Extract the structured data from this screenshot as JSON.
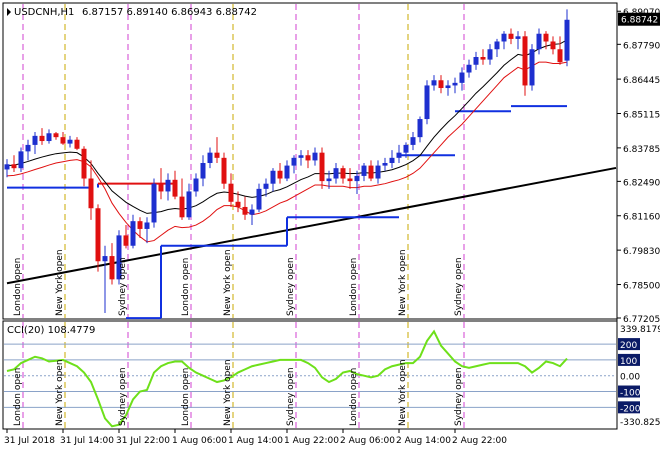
{
  "header": {
    "title": "USDCNH,H1",
    "ohlc": "6.87157 6.89140 6.86943 6.88742"
  },
  "price_axis": {
    "ticks": [
      "6.89070",
      "6.87790",
      "6.86445",
      "6.85115",
      "6.83785",
      "6.82490",
      "6.81160",
      "6.79830",
      "6.78500",
      "6.77205"
    ],
    "current": "6.88742"
  },
  "time_axis": {
    "ticks": [
      "31 Jul 2018",
      "31 Jul 14:00",
      "31 Jul 22:00",
      "1 Aug 06:00",
      "1 Aug 14:00",
      "1 Aug 22:00",
      "2 Aug 06:00",
      "2 Aug 14:00",
      "2 Aug 22:00"
    ]
  },
  "session_labels": [
    "London open",
    "New York open",
    "Sydney open",
    "London open",
    "New York open",
    "Sydney open",
    "London open",
    "New York open",
    "Sydney open"
  ],
  "cci": {
    "title": "CCI(20) 108.4779",
    "axis_top": "339.8179",
    "axis_bottom": "-330.8253",
    "levels": [
      {
        "label": "200",
        "value": 200
      },
      {
        "label": "100",
        "value": 100
      },
      {
        "label": "0.00",
        "value": 0
      },
      {
        "label": "-100",
        "value": -100
      },
      {
        "label": "-200",
        "value": -200
      }
    ]
  },
  "colors": {
    "bull": "#1e2fcf",
    "bear": "#e01010",
    "slow_line": "#000000",
    "fast_line": "#e01010",
    "stop_line": "#1030e0",
    "trendline": "#000000",
    "cci_line": "#6ee01a",
    "level_line": "#8aa2c8",
    "session_london": "#d040d0",
    "session_newyork": "#c8a800",
    "session_sydney": "#d040d0",
    "label_bg": "#0a1a66"
  },
  "chart_data": {
    "type": "candlestick",
    "timeframe": "H1",
    "ylim": [
      6.77205,
      6.8935
    ],
    "cci_ylim": [
      -330.8253,
      339.8179
    ],
    "candles": [
      [
        6.8295,
        6.8335,
        6.8265,
        6.8315
      ],
      [
        6.8315,
        6.835,
        6.8285,
        6.83
      ],
      [
        6.83,
        6.838,
        6.8285,
        6.8365
      ],
      [
        6.8365,
        6.841,
        6.833,
        6.839
      ],
      [
        6.839,
        6.844,
        6.8355,
        6.8425
      ],
      [
        6.8425,
        6.8455,
        6.839,
        6.8405
      ],
      [
        6.8405,
        6.845,
        6.8395,
        6.8435
      ],
      [
        6.8435,
        6.844,
        6.841,
        6.842
      ],
      [
        6.842,
        6.844,
        6.839,
        6.8395
      ],
      [
        6.8395,
        6.8425,
        6.838,
        6.841
      ],
      [
        6.841,
        6.842,
        6.837,
        6.8375
      ],
      [
        6.8375,
        6.8385,
        6.823,
        6.826
      ],
      [
        6.826,
        6.833,
        6.81,
        6.8145
      ],
      [
        6.8145,
        6.816,
        6.79,
        6.794
      ],
      [
        6.794,
        6.8,
        6.774,
        6.796
      ],
      [
        6.796,
        6.801,
        6.785,
        6.787
      ],
      [
        6.787,
        6.806,
        6.785,
        6.804
      ],
      [
        6.804,
        6.808,
        6.799,
        6.8
      ],
      [
        6.8,
        6.812,
        6.799,
        6.8095
      ],
      [
        6.8095,
        6.811,
        6.803,
        6.8065
      ],
      [
        6.8065,
        6.811,
        6.801,
        6.809
      ],
      [
        6.809,
        6.826,
        6.807,
        6.824
      ],
      [
        6.824,
        6.83,
        6.818,
        6.821
      ],
      [
        6.821,
        6.828,
        6.8175,
        6.8255
      ],
      [
        6.8255,
        6.829,
        6.818,
        6.819
      ],
      [
        6.819,
        6.826,
        6.81,
        6.811
      ],
      [
        6.811,
        6.824,
        6.81,
        6.821
      ],
      [
        6.821,
        6.828,
        6.819,
        6.826
      ],
      [
        6.826,
        6.835,
        6.823,
        6.832
      ],
      [
        6.832,
        6.838,
        6.83,
        6.836
      ],
      [
        6.836,
        6.842,
        6.832,
        6.834
      ],
      [
        6.834,
        6.836,
        6.822,
        6.824
      ],
      [
        6.824,
        6.828,
        6.815,
        6.817
      ],
      [
        6.817,
        6.821,
        6.813,
        6.815
      ],
      [
        6.815,
        6.819,
        6.81,
        6.812
      ],
      [
        6.812,
        6.816,
        6.808,
        6.814
      ],
      [
        6.814,
        6.824,
        6.813,
        6.822
      ],
      [
        6.822,
        6.826,
        6.819,
        6.824
      ],
      [
        6.824,
        6.83,
        6.821,
        6.829
      ],
      [
        6.829,
        6.832,
        6.824,
        6.826
      ],
      [
        6.826,
        6.833,
        6.825,
        6.831
      ],
      [
        6.831,
        6.835,
        6.828,
        6.834
      ],
      [
        6.834,
        6.837,
        6.831,
        6.835
      ],
      [
        6.835,
        6.837,
        6.83,
        6.833
      ],
      [
        6.833,
        6.838,
        6.831,
        6.836
      ],
      [
        6.836,
        6.838,
        6.822,
        6.825
      ],
      [
        6.825,
        6.829,
        6.822,
        6.826
      ],
      [
        6.826,
        6.832,
        6.824,
        6.83
      ],
      [
        6.83,
        6.831,
        6.824,
        6.826
      ],
      [
        6.826,
        6.83,
        6.822,
        6.825
      ],
      [
        6.825,
        6.829,
        6.82,
        6.827
      ],
      [
        6.827,
        6.832,
        6.825,
        6.831
      ],
      [
        6.831,
        6.833,
        6.825,
        6.826
      ],
      [
        6.826,
        6.833,
        6.824,
        6.831
      ],
      [
        6.831,
        6.834,
        6.829,
        6.832
      ],
      [
        6.832,
        6.837,
        6.83,
        6.834
      ],
      [
        6.834,
        6.839,
        6.832,
        6.836
      ],
      [
        6.836,
        6.84,
        6.834,
        6.839
      ],
      [
        6.839,
        6.844,
        6.837,
        6.842
      ],
      [
        6.842,
        6.85,
        6.84,
        6.849
      ],
      [
        6.849,
        6.864,
        6.847,
        6.862
      ],
      [
        6.862,
        6.866,
        6.86,
        6.864
      ],
      [
        6.864,
        6.866,
        6.859,
        6.861
      ],
      [
        6.861,
        6.864,
        6.858,
        6.862
      ],
      [
        6.862,
        6.865,
        6.859,
        6.863
      ],
      [
        6.863,
        6.869,
        6.86,
        6.867
      ],
      [
        6.867,
        6.872,
        6.865,
        6.87
      ],
      [
        6.87,
        6.875,
        6.868,
        6.873
      ],
      [
        6.873,
        6.876,
        6.87,
        6.872
      ],
      [
        6.872,
        6.878,
        6.87,
        6.876
      ],
      [
        6.876,
        6.88,
        6.873,
        6.879
      ],
      [
        6.879,
        6.883,
        6.876,
        6.882
      ],
      [
        6.882,
        6.884,
        6.878,
        6.88
      ],
      [
        6.88,
        6.883,
        6.876,
        6.881
      ],
      [
        6.881,
        6.883,
        6.858,
        6.862
      ],
      [
        6.862,
        6.878,
        6.86,
        6.876
      ],
      [
        6.876,
        6.884,
        6.874,
        6.882
      ],
      [
        6.882,
        6.883,
        6.876,
        6.879
      ],
      [
        6.879,
        6.881,
        6.874,
        6.876
      ],
      [
        6.876,
        6.881,
        6.87,
        6.871
      ],
      [
        6.8716,
        6.8914,
        6.8694,
        6.8874
      ]
    ],
    "slow_ma": [
      6.831,
      6.8312,
      6.8318,
      6.8326,
      6.8335,
      6.8343,
      6.835,
      6.8356,
      6.8359,
      6.8362,
      6.836,
      6.8343,
      6.8318,
      6.828,
      6.8247,
      6.8212,
      6.819,
      6.8168,
      6.8152,
      6.8137,
      6.8125,
      6.8128,
      6.8132,
      6.814,
      6.8144,
      6.8141,
      6.8146,
      6.8155,
      6.817,
      6.8188,
      6.8203,
      6.8208,
      6.8205,
      6.8199,
      6.8192,
      6.8187,
      6.8191,
      6.8198,
      6.821,
      6.8217,
      6.8228,
      6.8242,
      6.8256,
      6.8266,
      6.8279,
      6.8279,
      6.8278,
      6.8281,
      6.8281,
      6.8279,
      6.828,
      6.8283,
      6.8281,
      6.8284,
      6.8288,
      6.8294,
      6.8303,
      6.8314,
      6.8329,
      6.8349,
      6.8385,
      6.842,
      6.845,
      6.8478,
      6.8503,
      6.8531,
      6.856,
      6.859,
      6.8615,
      6.8642,
      6.8669,
      6.8698,
      6.872,
      6.874,
      6.8735,
      6.8746,
      6.8762,
      6.8772,
      6.8779,
      6.8781,
      6.8796
    ],
    "fast_ma": [
      6.827,
      6.8272,
      6.8278,
      6.8286,
      6.8295,
      6.8303,
      6.8312,
      6.832,
      6.8325,
      6.833,
      6.8333,
      6.8325,
      6.8305,
      6.8265,
      6.822,
      6.8165,
      6.8125,
      6.809,
      6.806,
      6.8035,
      6.8015,
      6.802,
      6.804,
      6.806,
      6.8075,
      6.807,
      6.8072,
      6.808,
      6.8095,
      6.8115,
      6.814,
      6.8155,
      6.8155,
      6.815,
      6.8135,
      6.812,
      6.8125,
      6.8135,
      6.815,
      6.8165,
      6.8175,
      6.819,
      6.8205,
      6.822,
      6.8235,
      6.8235,
      6.823,
      6.823,
      6.823,
      6.8225,
      6.8225,
      6.823,
      6.823,
      6.8235,
      6.824,
      6.8248,
      6.8255,
      6.8265,
      6.828,
      6.83,
      6.833,
      6.836,
      6.839,
      6.842,
      6.8445,
      6.847,
      6.85,
      6.853,
      6.856,
      6.859,
      6.862,
      6.865,
      6.867,
      6.869,
      6.868,
      6.8695,
      6.871,
      6.871,
      6.8705,
      6.8705,
      6.871
    ],
    "stop_segments": [
      {
        "start": 0,
        "end": 12,
        "value": 6.8225
      },
      {
        "start": 13,
        "end": 24,
        "value": 6.824
      },
      {
        "start": 17,
        "end": 22,
        "value": 6.772
      },
      {
        "start": 22,
        "end": 40,
        "value": 6.8
      },
      {
        "start": 40,
        "end": 56,
        "value": 6.811
      },
      {
        "start": 56,
        "end": 64,
        "value": 6.835
      },
      {
        "start": 64,
        "end": 72,
        "value": 6.852
      },
      {
        "start": 72,
        "end": 80,
        "value": 6.854
      }
    ],
    "trendline": {
      "x0": 0,
      "y0": 6.7855,
      "x1": 80,
      "y1": 6.827
    },
    "cci": [
      30,
      40,
      80,
      100,
      120,
      110,
      90,
      95,
      100,
      80,
      60,
      20,
      -40,
      -150,
      -270,
      -320,
      -310,
      -250,
      -150,
      -100,
      -90,
      20,
      60,
      80,
      90,
      90,
      50,
      20,
      0,
      -20,
      -40,
      -30,
      -10,
      20,
      40,
      60,
      70,
      80,
      90,
      100,
      100,
      100,
      100,
      80,
      50,
      -10,
      -40,
      -20,
      20,
      30,
      10,
      0,
      -10,
      0,
      40,
      60,
      70,
      80,
      80,
      120,
      220,
      280,
      190,
      140,
      90,
      60,
      50,
      60,
      70,
      80,
      80,
      80,
      80,
      80,
      60,
      20,
      50,
      90,
      80,
      60,
      108.4779
    ],
    "session_markers": [
      {
        "index": 2,
        "type": "london"
      },
      {
        "index": 8,
        "type": "newyork"
      },
      {
        "index": 17,
        "type": "sydney"
      },
      {
        "index": 26,
        "type": "london"
      },
      {
        "index": 32,
        "type": "newyork"
      },
      {
        "index": 41,
        "type": "sydney"
      },
      {
        "index": 50,
        "type": "london"
      },
      {
        "index": 57,
        "type": "newyork"
      },
      {
        "index": 65,
        "type": "sydney"
      }
    ],
    "time_tick_indices": [
      0,
      8,
      16,
      24,
      32,
      40,
      48,
      56,
      64
    ]
  }
}
